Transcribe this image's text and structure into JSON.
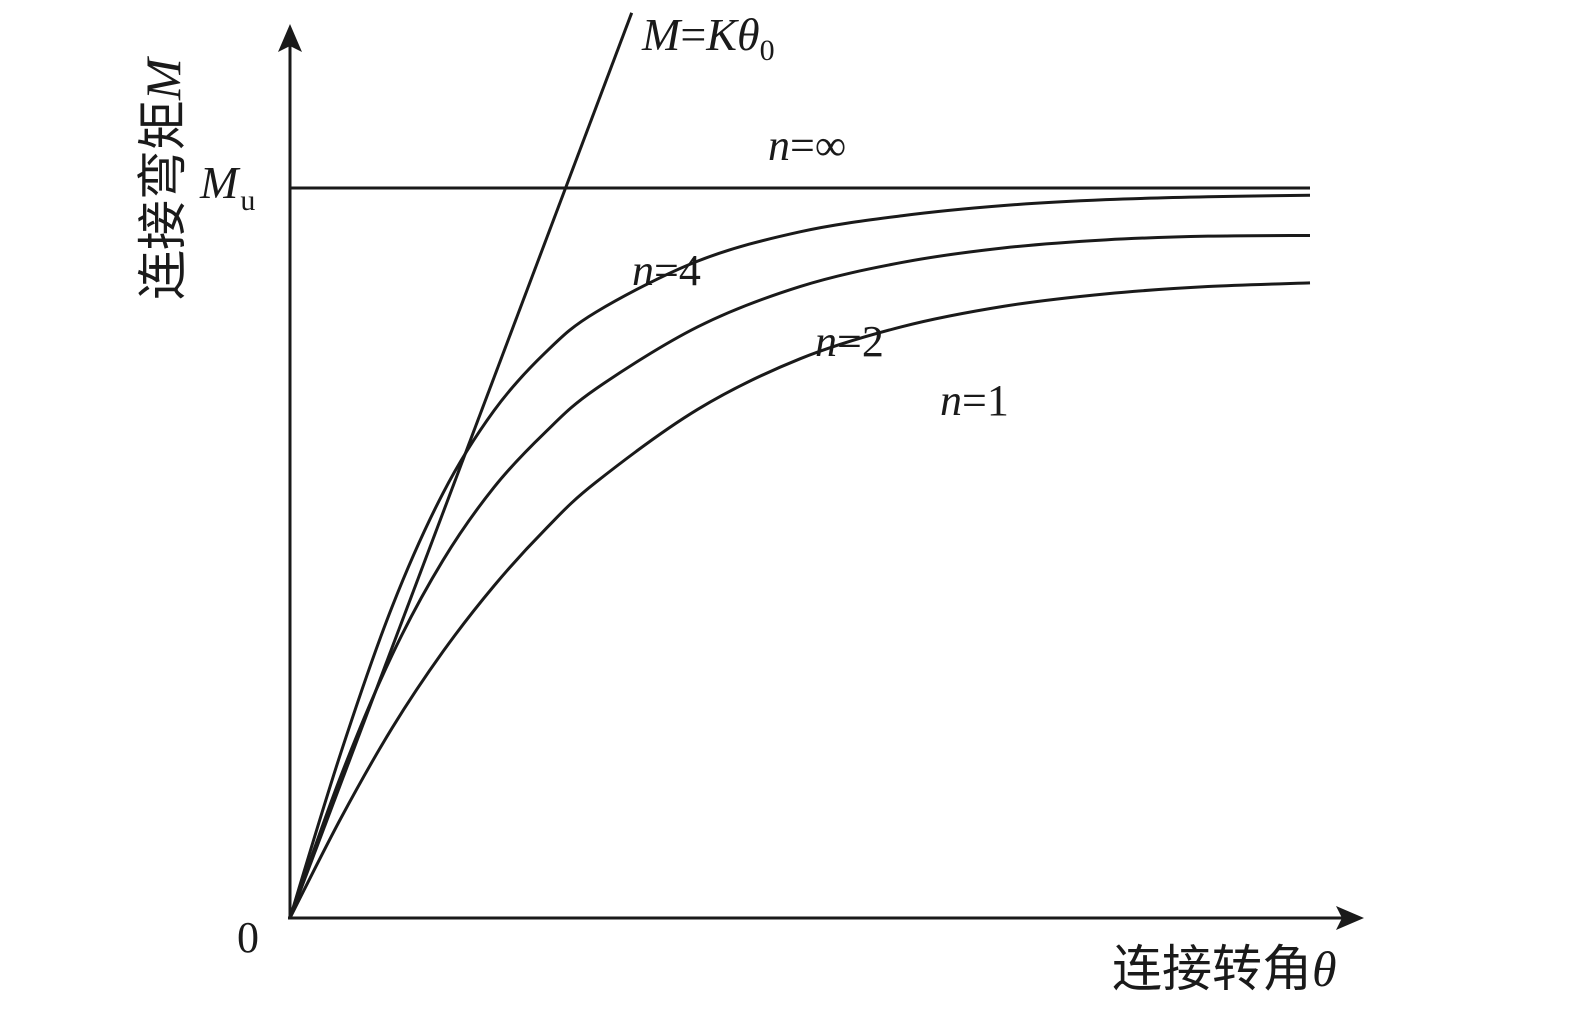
{
  "chart_data": {
    "type": "line",
    "title": "",
    "xlabel": {
      "text": "连接转角",
      "symbol": "θ"
    },
    "ylabel": {
      "text": "连接弯矩",
      "symbol": "M"
    },
    "origin_label": "0",
    "ytick": {
      "symbol": "M",
      "subscript": "u",
      "value": 1.0
    },
    "x_range": [
      0,
      1
    ],
    "y_range": [
      0,
      1.2
    ],
    "grid": false,
    "legend": "none",
    "line_color": "#1a1a1a",
    "series": [
      {
        "name": "M=Kθ0",
        "label_parts": {
          "a": "M",
          "eq": "=",
          "b": "K",
          "c": "θ",
          "sub": "0"
        },
        "x": [
          0,
          0.335
        ],
        "y": [
          0,
          1.24
        ]
      },
      {
        "name": "n=∞",
        "label_parts": {
          "var": "n",
          "rest": "=∞"
        },
        "x": [
          0,
          0.1,
          1
        ],
        "y": [
          1.0,
          1.0,
          1.0
        ]
      },
      {
        "name": "n=4",
        "label_parts": {
          "var": "n",
          "rest": "=4"
        },
        "x": [
          0,
          0.05,
          0.1,
          0.15,
          0.2,
          0.25,
          0.3,
          0.4,
          0.5,
          0.6,
          0.7,
          0.8,
          0.9,
          1.0
        ],
        "y": [
          0,
          0.227,
          0.426,
          0.582,
          0.695,
          0.774,
          0.83,
          0.9,
          0.94,
          0.962,
          0.976,
          0.984,
          0.988,
          0.99
        ]
      },
      {
        "name": "n=2",
        "label_parts": {
          "var": "n",
          "rest": "=2"
        },
        "x": [
          0,
          0.05,
          0.1,
          0.15,
          0.2,
          0.25,
          0.3,
          0.4,
          0.5,
          0.6,
          0.7,
          0.8,
          0.9,
          1.0
        ],
        "y": [
          0,
          0.195,
          0.36,
          0.49,
          0.59,
          0.665,
          0.725,
          0.81,
          0.865,
          0.898,
          0.918,
          0.929,
          0.934,
          0.935
        ]
      },
      {
        "name": "n=1",
        "label_parts": {
          "var": "n",
          "rest": "=1"
        },
        "x": [
          0,
          0.05,
          0.1,
          0.15,
          0.2,
          0.25,
          0.3,
          0.4,
          0.5,
          0.6,
          0.7,
          0.8,
          0.9,
          1.0
        ],
        "y": [
          0,
          0.137,
          0.26,
          0.365,
          0.455,
          0.532,
          0.597,
          0.697,
          0.766,
          0.81,
          0.838,
          0.855,
          0.865,
          0.87
        ]
      }
    ]
  }
}
